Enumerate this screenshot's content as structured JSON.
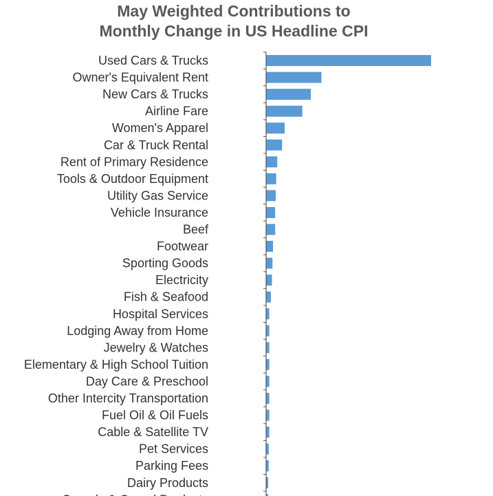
{
  "chart_data": {
    "type": "bar",
    "orientation": "horizontal",
    "title_lines": [
      "May Weighted Contributions to",
      "Monthly Change in US Headline CPI"
    ],
    "xlabel": "",
    "ylabel": "",
    "categories": [
      "Used Cars & Trucks",
      "Owner's Equivalent Rent",
      "New Cars & Trucks",
      "Airline Fare",
      "Women's Apparel",
      "Car & Truck Rental",
      "Rent of Primary Residence",
      "Tools & Outdoor Equipment",
      "Utility Gas Service",
      "Vehicle Insurance",
      "Beef",
      "Footwear",
      "Sporting Goods",
      "Electricity",
      "Fish & Seafood",
      "Hospital Services",
      "Lodging Away from Home",
      "Jewelry & Watches",
      "Elementary & High School Tuition",
      "Day Care & Preschool",
      "Other Intercity Transportation",
      "Fuel Oil & Oil Fuels",
      "Cable & Satellite TV",
      "Pet Services",
      "Parking Fees",
      "Dairy Products",
      "Cereals & Cereal Products"
    ],
    "values": [
      0.31,
      0.104,
      0.084,
      0.068,
      0.035,
      0.03,
      0.021,
      0.019,
      0.018,
      0.017,
      0.017,
      0.013,
      0.012,
      0.011,
      0.009,
      0.006,
      0.006,
      0.006,
      0.006,
      0.006,
      0.006,
      0.006,
      0.006,
      0.005,
      0.005,
      0.004,
      0.004
    ],
    "bar_color": "#5b9bd5",
    "axis_color": "#555555",
    "grid": false
  }
}
